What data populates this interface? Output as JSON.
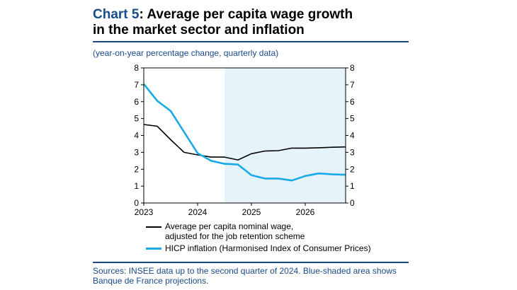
{
  "header": {
    "chart_number": "Chart 5",
    "title_rest": ": Average per capita wage growth",
    "title_line2": "in the market sector and inflation",
    "subtitle": "(year-on-year percentage change, quarterly data)"
  },
  "source_note": "Sources: INSEE data up to the second quarter of 2024. Blue-shaded area shows Banque de France projections.",
  "colors": {
    "accent": "#1a4a8a",
    "wage": "#000000",
    "hicp": "#1aaae6",
    "projection_shade": "#e5f3fb"
  },
  "chart_data": {
    "type": "line",
    "title": "Average per capita wage growth in the market sector and inflation",
    "xlabel": "",
    "ylabel": "",
    "x": [
      2023.0,
      2023.25,
      2023.5,
      2023.75,
      2024.0,
      2024.25,
      2024.5,
      2024.75,
      2025.0,
      2025.25,
      2025.5,
      2025.75,
      2026.0,
      2026.25,
      2026.5,
      2026.75
    ],
    "x_range": [
      2023.0,
      2026.75
    ],
    "xticks": [
      2023,
      2024,
      2025,
      2026
    ],
    "xtick_labels": [
      "2023",
      "2024",
      "2025",
      "2026"
    ],
    "ylim": [
      0,
      8
    ],
    "yticks": [
      0,
      1,
      2,
      3,
      4,
      5,
      6,
      7,
      8
    ],
    "ytick_labels": [
      "0",
      "1",
      "2",
      "3",
      "4",
      "5",
      "6",
      "7",
      "8"
    ],
    "projection_start": 2024.5,
    "series": [
      {
        "name": "Average per capita nominal wage, adjusted for the job retention scheme",
        "legend_line1": "Average per capita nominal wage,",
        "legend_line2": "adjusted for the job retention scheme",
        "color": "#000000",
        "values": [
          4.65,
          4.55,
          3.75,
          3.0,
          2.85,
          2.72,
          2.72,
          2.55,
          2.92,
          3.08,
          3.1,
          3.25,
          3.25,
          3.27,
          3.3,
          3.32
        ]
      },
      {
        "name": "HICP inflation (Harmonised Index of Consumer Prices)",
        "legend_line1": "HICP inflation (Harmonised Index of Consumer Prices)",
        "color": "#1aaae6",
        "values": [
          7.05,
          6.05,
          5.45,
          4.2,
          2.95,
          2.5,
          2.32,
          2.28,
          1.65,
          1.45,
          1.45,
          1.33,
          1.6,
          1.75,
          1.7,
          1.67
        ]
      }
    ]
  }
}
